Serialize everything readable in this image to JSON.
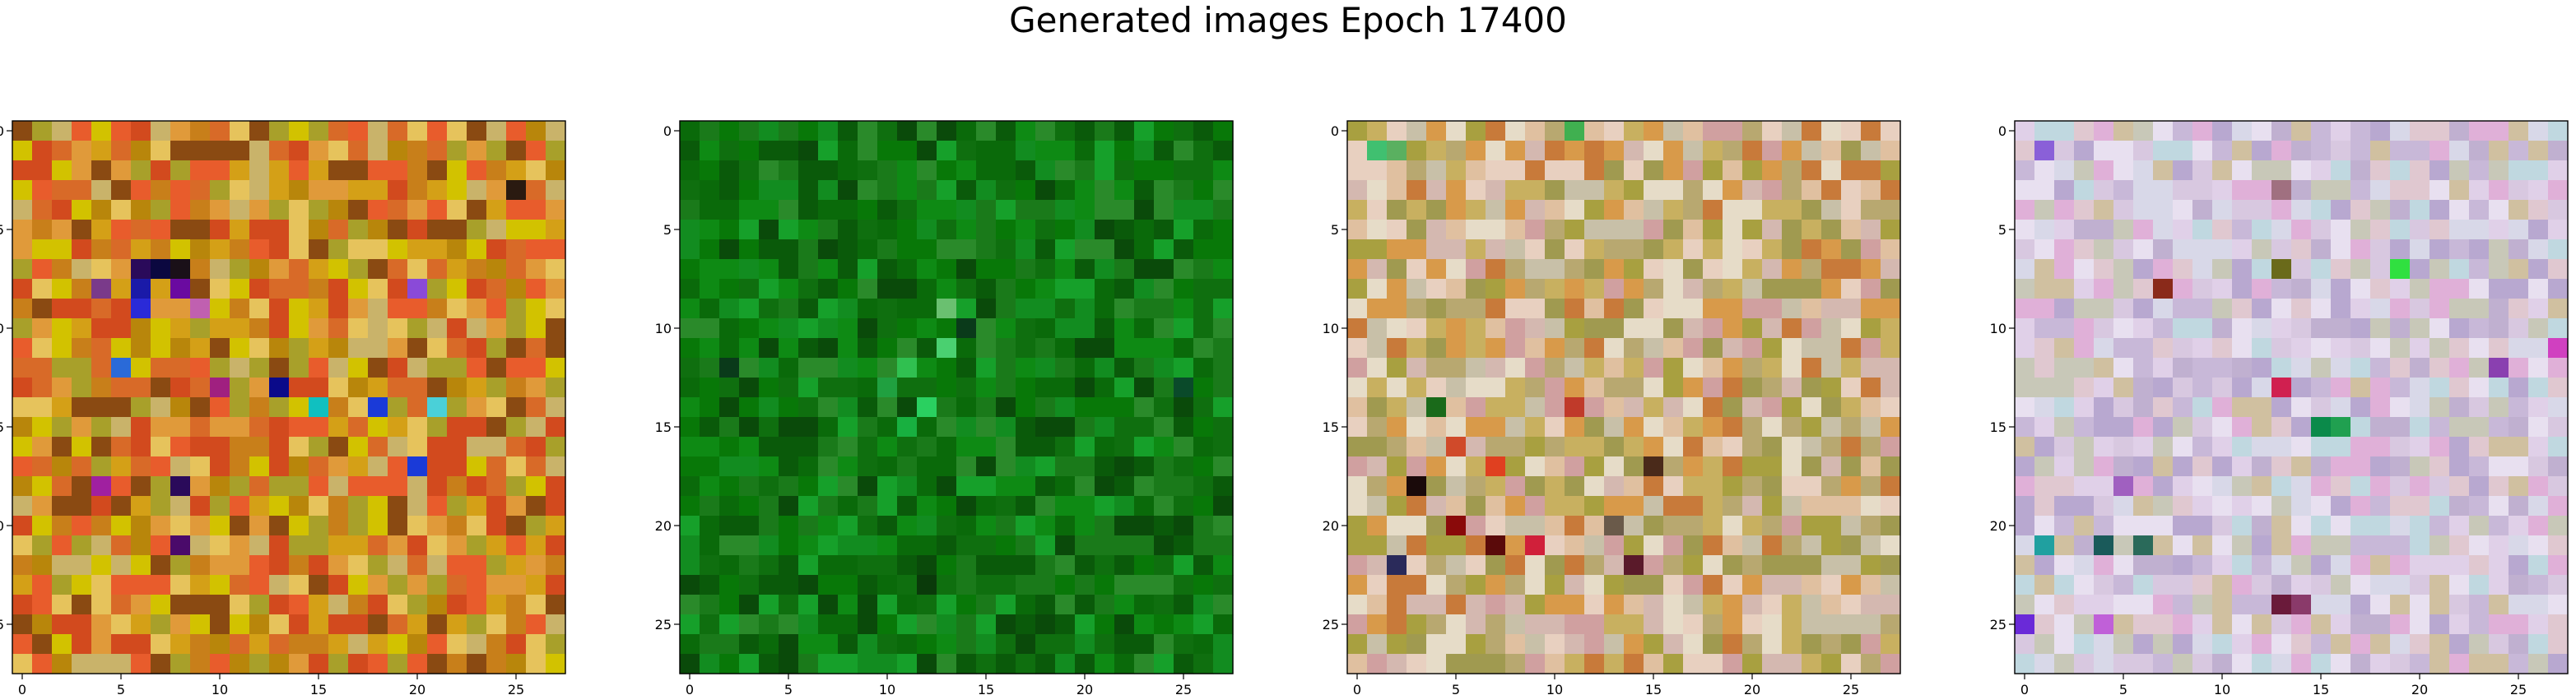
{
  "figure": {
    "title": "Generated images Epoch 17400"
  },
  "chart_data": [
    {
      "type": "heatmap",
      "grid_size": [
        28,
        28
      ],
      "xlim": [
        -0.5,
        27.5
      ],
      "ylim": [
        27.5,
        -0.5
      ],
      "x_ticks": [
        0,
        5,
        10,
        15,
        20,
        25
      ],
      "y_ticks": [
        0,
        5,
        10,
        15,
        20,
        25
      ],
      "x_tick_labels": [
        "0",
        "5",
        "10",
        "15",
        "20",
        "25"
      ],
      "y_tick_labels": [
        "0",
        "5",
        "10",
        "15",
        "20",
        "25"
      ],
      "palette": [
        "#d4a017",
        "#e09a3a",
        "#c87f1a",
        "#b8860b",
        "#d24a1e",
        "#e6c35c",
        "#a8a02a",
        "#d86a28",
        "#c9b36a",
        "#e85c2c",
        "#d2c200",
        "#8a4a12"
      ],
      "accent_pixels": [
        {
          "x": 6,
          "y": 7,
          "color": "#2a0a5a"
        },
        {
          "x": 7,
          "y": 7,
          "color": "#0b0840"
        },
        {
          "x": 8,
          "y": 7,
          "color": "#1a1018"
        },
        {
          "x": 6,
          "y": 8,
          "color": "#1a1aa8"
        },
        {
          "x": 6,
          "y": 9,
          "color": "#2a2ad8"
        },
        {
          "x": 4,
          "y": 8,
          "color": "#7a3a8a"
        },
        {
          "x": 9,
          "y": 9,
          "color": "#c060b0"
        },
        {
          "x": 5,
          "y": 12,
          "color": "#2a6ad8"
        },
        {
          "x": 13,
          "y": 13,
          "color": "#0a0a8a"
        },
        {
          "x": 15,
          "y": 14,
          "color": "#10c0c0"
        },
        {
          "x": 18,
          "y": 14,
          "color": "#1a3ad8"
        },
        {
          "x": 21,
          "y": 14,
          "color": "#4ad0d8"
        },
        {
          "x": 4,
          "y": 18,
          "color": "#a020a0"
        },
        {
          "x": 8,
          "y": 18,
          "color": "#2a0a5a"
        },
        {
          "x": 20,
          "y": 17,
          "color": "#1a3ad8"
        },
        {
          "x": 8,
          "y": 21,
          "color": "#4a0a6a"
        },
        {
          "x": 20,
          "y": 8,
          "color": "#8a4ad8"
        },
        {
          "x": 10,
          "y": 13,
          "color": "#a02080"
        },
        {
          "x": 25,
          "y": 3,
          "color": "#2a1a10"
        },
        {
          "x": 8,
          "y": 8,
          "color": "#6a0aa0"
        }
      ]
    },
    {
      "type": "heatmap",
      "grid_size": [
        28,
        28
      ],
      "xlim": [
        -0.5,
        27.5
      ],
      "ylim": [
        27.5,
        -0.5
      ],
      "x_ticks": [
        0,
        5,
        10,
        15,
        20,
        25
      ],
      "y_ticks": [
        0,
        5,
        10,
        15,
        20,
        25
      ],
      "x_tick_labels": [
        "0",
        "5",
        "10",
        "15",
        "20",
        "25"
      ],
      "y_tick_labels": [
        "0",
        "5",
        "10",
        "15",
        "20",
        "25"
      ],
      "palette": [
        "#0a6a0a",
        "#087808",
        "#0e8a14",
        "#1a7a1a",
        "#0a5a0a",
        "#128c20",
        "#0f6f0f",
        "#2a8a2a",
        "#0a4a0a",
        "#16a02a"
      ],
      "accent_pixels": [
        {
          "x": 13,
          "y": 11,
          "color": "#4ad070"
        },
        {
          "x": 11,
          "y": 12,
          "color": "#30c050"
        },
        {
          "x": 12,
          "y": 14,
          "color": "#2ad060"
        },
        {
          "x": 13,
          "y": 9,
          "color": "#6ac070"
        },
        {
          "x": 14,
          "y": 10,
          "color": "#0a3a1a"
        },
        {
          "x": 10,
          "y": 13,
          "color": "#20a040"
        },
        {
          "x": 11,
          "y": 15,
          "color": "#18b040"
        },
        {
          "x": 2,
          "y": 12,
          "color": "#0a3a1a"
        },
        {
          "x": 25,
          "y": 13,
          "color": "#0a4a2a"
        },
        {
          "x": 12,
          "y": 23,
          "color": "#0a3a0a"
        }
      ]
    },
    {
      "type": "heatmap",
      "grid_size": [
        28,
        28
      ],
      "xlim": [
        -0.5,
        27.5
      ],
      "ylim": [
        27.5,
        -0.5
      ],
      "x_ticks": [
        0,
        5,
        10,
        15,
        20,
        25
      ],
      "y_ticks": [
        0,
        5,
        10,
        15,
        20,
        25
      ],
      "x_tick_labels": [
        "0",
        "5",
        "10",
        "15",
        "20",
        "25"
      ],
      "y_tick_labels": [
        "0",
        "5",
        "10",
        "15",
        "20",
        "25"
      ],
      "palette": [
        "#a8a040",
        "#c8b060",
        "#d89a4a",
        "#e0c0a0",
        "#d4b8b0",
        "#c87a3a",
        "#e8d0c0",
        "#b8a870",
        "#d0a0a0",
        "#a09a50",
        "#e6dcc8",
        "#c8c0a8"
      ],
      "accent_pixels": [
        {
          "x": 1,
          "y": 1,
          "color": "#40c070"
        },
        {
          "x": 2,
          "y": 1,
          "color": "#5ab060"
        },
        {
          "x": 11,
          "y": 0,
          "color": "#40b050"
        },
        {
          "x": 5,
          "y": 20,
          "color": "#8a0a0a"
        },
        {
          "x": 7,
          "y": 21,
          "color": "#5a0a0a"
        },
        {
          "x": 3,
          "y": 18,
          "color": "#1a0a0a"
        },
        {
          "x": 7,
          "y": 17,
          "color": "#e04020"
        },
        {
          "x": 5,
          "y": 16,
          "color": "#d04a2a"
        },
        {
          "x": 14,
          "y": 22,
          "color": "#5a1a2a"
        },
        {
          "x": 13,
          "y": 20,
          "color": "#6a5a4a"
        },
        {
          "x": 11,
          "y": 14,
          "color": "#c03a2a"
        },
        {
          "x": 4,
          "y": 14,
          "color": "#1a6a1a"
        },
        {
          "x": 9,
          "y": 21,
          "color": "#d0203a"
        },
        {
          "x": 2,
          "y": 22,
          "color": "#2a2a5a"
        },
        {
          "x": 15,
          "y": 17,
          "color": "#4a2a1a"
        }
      ]
    },
    {
      "type": "heatmap",
      "grid_size": [
        28,
        28
      ],
      "xlim": [
        -0.5,
        27.5
      ],
      "ylim": [
        27.5,
        -0.5
      ],
      "x_ticks": [
        0,
        5,
        10,
        15,
        20,
        25
      ],
      "y_ticks": [
        0,
        5,
        10,
        15,
        20,
        25
      ],
      "x_tick_labels": [
        "0",
        "5",
        "10",
        "15",
        "20",
        "25"
      ],
      "y_tick_labels": [
        "0",
        "5",
        "10",
        "15",
        "20",
        "25"
      ],
      "palette": [
        "#d8c8e0",
        "#e0d0e8",
        "#c8b8d8",
        "#e8e0f0",
        "#d0c0a0",
        "#c0b0d0",
        "#e0c8d0",
        "#b8a8d0",
        "#d8d8e8",
        "#c8c8b8",
        "#e0b0d8",
        "#c0d8e0"
      ],
      "accent_pixels": [
        {
          "x": 1,
          "y": 1,
          "color": "#8a60d8"
        },
        {
          "x": 0,
          "y": 25,
          "color": "#6a2ad8"
        },
        {
          "x": 4,
          "y": 25,
          "color": "#c060d8"
        },
        {
          "x": 13,
          "y": 3,
          "color": "#a07080"
        },
        {
          "x": 13,
          "y": 7,
          "color": "#6a6a1a"
        },
        {
          "x": 19,
          "y": 7,
          "color": "#30e040"
        },
        {
          "x": 13,
          "y": 13,
          "color": "#d02050"
        },
        {
          "x": 15,
          "y": 15,
          "color": "#0a8a4a"
        },
        {
          "x": 16,
          "y": 15,
          "color": "#20a050"
        },
        {
          "x": 5,
          "y": 18,
          "color": "#a060c0"
        },
        {
          "x": 4,
          "y": 21,
          "color": "#1a5a5a"
        },
        {
          "x": 6,
          "y": 21,
          "color": "#2a6a5a"
        },
        {
          "x": 1,
          "y": 21,
          "color": "#20a0a0"
        },
        {
          "x": 13,
          "y": 24,
          "color": "#6a1a3a"
        },
        {
          "x": 14,
          "y": 24,
          "color": "#8a3a6a"
        },
        {
          "x": 24,
          "y": 12,
          "color": "#8a40b0"
        },
        {
          "x": 27,
          "y": 11,
          "color": "#d040c0"
        },
        {
          "x": 7,
          "y": 8,
          "color": "#8a2a1a"
        }
      ]
    }
  ]
}
